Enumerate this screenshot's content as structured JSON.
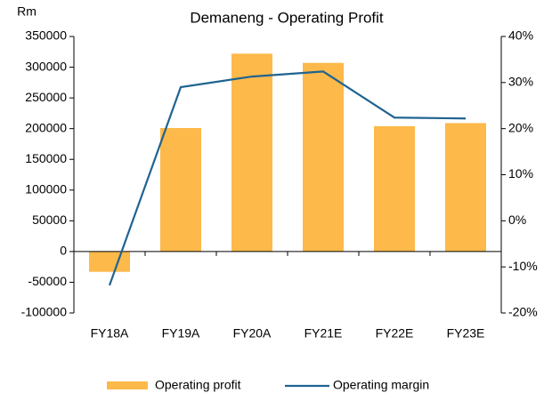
{
  "chart_data": {
    "type": "bar",
    "title": "Demaneng - Operating Profit",
    "y_label": "Rm",
    "categories": [
      "FY18A",
      "FY19A",
      "FY20A",
      "FY21E",
      "FY22E",
      "FY23E"
    ],
    "series": [
      {
        "name": "Operating profit",
        "type": "bar",
        "color": "#fdb94a",
        "values": [
          -33000,
          201000,
          322000,
          307000,
          204000,
          209000
        ]
      },
      {
        "name": "Operating margin",
        "type": "line",
        "axis": "y2",
        "color": "#1f6391",
        "values": [
          -14,
          29,
          31.3,
          32.4,
          22.4,
          22.2
        ]
      }
    ],
    "ylim": [
      -100000,
      350000
    ],
    "yticks": [
      -100000,
      -50000,
      0,
      50000,
      100000,
      150000,
      200000,
      250000,
      300000,
      350000
    ],
    "y2lim": [
      -20,
      40
    ],
    "y2ticks": [
      {
        "value": -20,
        "label": "-20%"
      },
      {
        "value": -10,
        "label": "-10%"
      },
      {
        "value": 0,
        "label": "0%"
      },
      {
        "value": 10,
        "label": "10%"
      },
      {
        "value": 20,
        "label": "20%"
      },
      {
        "value": 30,
        "label": "30%"
      },
      {
        "value": 40,
        "label": "40%"
      }
    ],
    "legend": "bottom"
  }
}
